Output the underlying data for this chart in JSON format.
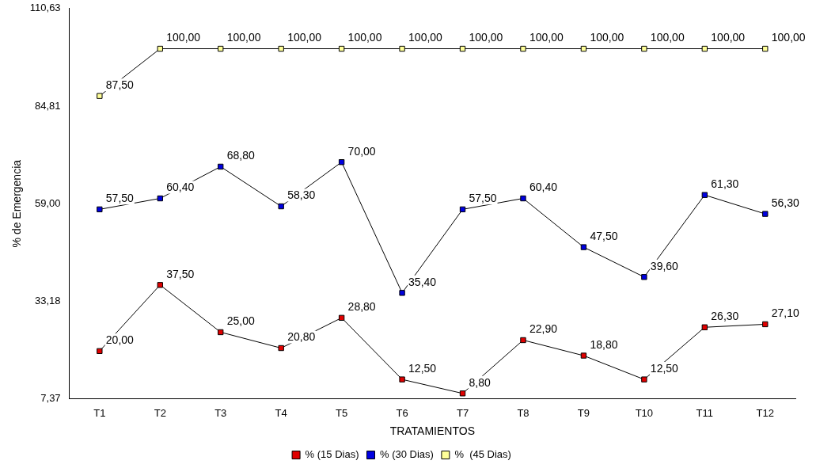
{
  "chart_data": {
    "type": "line",
    "xlabel": "TRATAMIENTOS",
    "ylabel": "% de Emergencia",
    "categories": [
      "T1",
      "T2",
      "T3",
      "T4",
      "T5",
      "T6",
      "T7",
      "T8",
      "T9",
      "T10",
      "T11",
      "T12"
    ],
    "ylim": [
      7.37,
      110.63
    ],
    "yticks": [
      {
        "value": 7.37,
        "label": "7,37"
      },
      {
        "value": 33.18,
        "label": "33,18"
      },
      {
        "value": 59.0,
        "label": "59,00"
      },
      {
        "value": 84.81,
        "label": "84,81"
      },
      {
        "value": 110.63,
        "label": "110,63"
      }
    ],
    "grid": false,
    "legend": "bottom",
    "marker": "square",
    "line_style": "solid",
    "series": [
      {
        "name": "% (15 Dias)",
        "color": "#e00000",
        "values": [
          20.0,
          37.5,
          25.0,
          20.8,
          28.8,
          12.5,
          8.8,
          22.9,
          18.8,
          12.5,
          26.3,
          27.1
        ],
        "value_labels": [
          "20,00",
          "37,50",
          "25,00",
          "20,80",
          "28,80",
          "12,50",
          "8,80",
          "22,90",
          "18,80",
          "12,50",
          "26,30",
          "27,10"
        ]
      },
      {
        "name": "% (30 Dias)",
        "color": "#0000e0",
        "values": [
          57.5,
          60.4,
          68.8,
          58.3,
          70.0,
          35.4,
          57.5,
          60.4,
          47.5,
          39.6,
          61.3,
          56.3
        ],
        "value_labels": [
          "57,50",
          "60,40",
          "68,80",
          "58,30",
          "70,00",
          "35,40",
          "57,50",
          "60,40",
          "47,50",
          "39,60",
          "61,30",
          "56,30"
        ]
      },
      {
        "name": "%  (45 Dias)",
        "color": "#ffff99",
        "values": [
          87.5,
          100.0,
          100.0,
          100.0,
          100.0,
          100.0,
          100.0,
          100.0,
          100.0,
          100.0,
          100.0,
          100.0
        ],
        "value_labels": [
          "87,50",
          "100,00",
          "100,00",
          "100,00",
          "100,00",
          "100,00",
          "100,00",
          "100,00",
          "100,00",
          "100,00",
          "100,00",
          "100,00"
        ]
      }
    ]
  }
}
